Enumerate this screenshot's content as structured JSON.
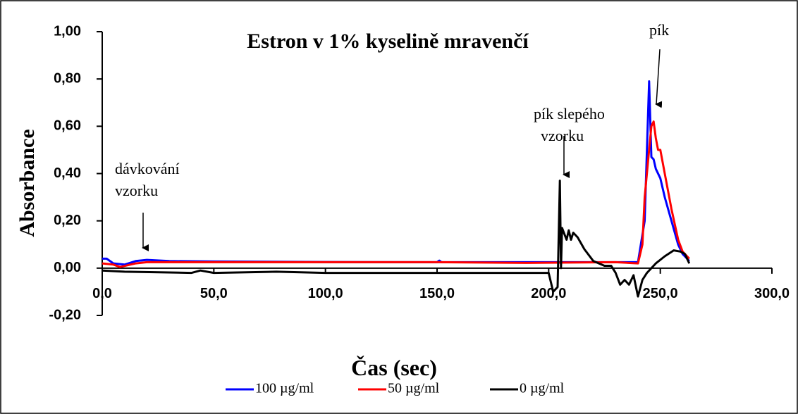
{
  "chart_data": {
    "type": "line",
    "title": "Estron v 1% kyselině mravenčí",
    "x_label": "Čas (sec)",
    "y_label": "Absorbance",
    "xlim": [
      0,
      300
    ],
    "ylim": [
      -0.2,
      1.0
    ],
    "xticks": [
      {
        "value": 0,
        "label": "0,0"
      },
      {
        "value": 50,
        "label": "50,0"
      },
      {
        "value": 100,
        "label": "100,0"
      },
      {
        "value": 150,
        "label": "150,0"
      },
      {
        "value": 200,
        "label": "200,0"
      },
      {
        "value": 250,
        "label": "250,0"
      },
      {
        "value": 300,
        "label": "300,0"
      }
    ],
    "yticks": [
      {
        "value": -0.2,
        "label": "-0,20"
      },
      {
        "value": 0,
        "label": "0,00"
      },
      {
        "value": 0.2,
        "label": "0,20"
      },
      {
        "value": 0.4,
        "label": "0,40"
      },
      {
        "value": 0.6,
        "label": "0,60"
      },
      {
        "value": 0.8,
        "label": "0,80"
      },
      {
        "value": 1.0,
        "label": "1,00"
      }
    ],
    "series": [
      {
        "name": "100 µg/ml",
        "color": "#0000ff",
        "x": [
          0,
          2,
          5,
          10,
          15,
          20,
          30,
          50,
          100,
          150,
          151,
          152,
          200,
          240,
          243,
          244,
          245,
          246,
          247,
          248,
          250,
          252,
          255,
          258,
          260,
          262,
          263
        ],
        "values": [
          0.04,
          0.04,
          0.02,
          0.015,
          0.03,
          0.035,
          0.03,
          0.028,
          0.026,
          0.025,
          0.032,
          0.025,
          0.025,
          0.025,
          0.2,
          0.5,
          0.79,
          0.47,
          0.46,
          0.42,
          0.38,
          0.3,
          0.2,
          0.1,
          0.06,
          0.04,
          0.03
        ]
      },
      {
        "name": "50  µg/ml",
        "color": "#ff0000",
        "x": [
          0,
          5,
          8,
          15,
          20,
          50,
          100,
          150,
          190,
          230,
          240,
          242,
          243,
          245,
          246,
          247,
          248,
          249,
          250,
          252,
          255,
          258,
          260,
          263
        ],
        "values": [
          0.02,
          0.015,
          0.005,
          0.02,
          0.025,
          0.025,
          0.025,
          0.025,
          0.022,
          0.025,
          0.02,
          0.1,
          0.3,
          0.5,
          0.6,
          0.62,
          0.55,
          0.5,
          0.5,
          0.4,
          0.25,
          0.12,
          0.07,
          0.04
        ]
      },
      {
        "name": "0  µg/ml",
        "color": "#000000",
        "x": [
          0,
          10,
          40,
          44,
          50,
          78,
          100,
          200,
          202,
          204,
          205,
          205.5,
          206,
          208,
          209,
          210,
          211,
          213,
          216,
          220,
          225,
          228,
          230,
          232,
          234,
          236,
          238,
          240,
          242,
          244,
          248,
          252,
          256,
          259,
          261,
          263
        ],
        "values": [
          -0.01,
          -0.015,
          -0.02,
          -0.01,
          -0.02,
          -0.015,
          -0.02,
          -0.02,
          -0.1,
          -0.08,
          0.37,
          0.0,
          0.17,
          0.12,
          0.16,
          0.12,
          0.15,
          0.13,
          0.08,
          0.03,
          0.01,
          0.01,
          -0.02,
          -0.07,
          -0.05,
          -0.07,
          -0.03,
          -0.12,
          -0.05,
          -0.02,
          0.02,
          0.05,
          0.075,
          0.07,
          0.06,
          0.02
        ]
      }
    ],
    "annotations": [
      {
        "lines": [
          "dávkování",
          "vzorku"
        ]
      },
      {
        "lines": [
          "pík slepého",
          "vzorku"
        ]
      },
      {
        "lines": [
          "pík"
        ]
      }
    ]
  }
}
